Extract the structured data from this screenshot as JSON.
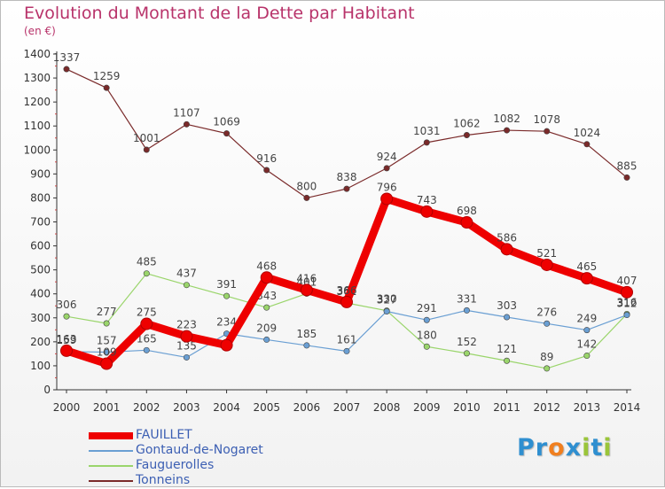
{
  "header": {
    "title": "Evolution du Montant de la Dette par Habitant",
    "unit": "(en €)"
  },
  "brand": {
    "letters": [
      {
        "char": "P",
        "color": "#2f8fd0"
      },
      {
        "char": "r",
        "color": "#2f8fd0"
      },
      {
        "char": "o",
        "color": "#f07f1f"
      },
      {
        "char": "x",
        "color": "#2f8fd0"
      },
      {
        "char": "i",
        "color": "#9ac53a"
      },
      {
        "char": "t",
        "color": "#2f8fd0"
      },
      {
        "char": "i",
        "color": "#9ac53a"
      }
    ]
  },
  "chart_data": {
    "type": "line",
    "title": "Evolution du Montant de la Dette par Habitant",
    "subtitle": "(en €)",
    "x": [
      "2000",
      "2001",
      "2002",
      "2003",
      "2004",
      "2005",
      "2006",
      "2007",
      "2008",
      "2009",
      "2010",
      "2011",
      "2012",
      "2013",
      "2014"
    ],
    "ylim": [
      0,
      1400
    ],
    "yticks": [
      0,
      100,
      200,
      300,
      400,
      500,
      600,
      700,
      800,
      900,
      1000,
      1100,
      1200,
      1300,
      1400
    ],
    "grid": false,
    "legend_position": "bottom-left",
    "series": [
      {
        "name": "Tonneins",
        "color": "#7a2a2a",
        "values": [
          1337,
          1259,
          1001,
          1107,
          1069,
          916,
          800,
          838,
          924,
          1031,
          1062,
          1082,
          1078,
          1024,
          885
        ],
        "labels": [
          "1337",
          "1259",
          "1001",
          "1107",
          "1069",
          "916",
          "800",
          "838",
          "924",
          "1031",
          "1062",
          "1082",
          "1078",
          "1024",
          "885"
        ]
      },
      {
        "name": "Fauguerolles",
        "color": "#9ad56b",
        "values": [
          306,
          277,
          485,
          437,
          391,
          343,
          401,
          362,
          330,
          180,
          152,
          121,
          89,
          142,
          316
        ],
        "labels": [
          "306",
          "277",
          "485",
          "437",
          "391",
          "343",
          "401",
          "362",
          "330",
          "180",
          "152",
          "121",
          "89",
          "142",
          "316"
        ]
      },
      {
        "name": "Gontaud-de-Nogaret",
        "color": "#6a9fd3",
        "values": [
          159,
          157,
          165,
          135,
          234,
          209,
          185,
          161,
          327,
          291,
          331,
          303,
          276,
          249,
          312
        ],
        "labels": [
          "159",
          "157",
          "165",
          "135",
          "234",
          "209",
          "185",
          "161",
          "327",
          "291",
          "331",
          "303",
          "276",
          "249",
          "312"
        ]
      },
      {
        "name": "FAUILLET",
        "color": "#ee0000",
        "values": [
          163,
          109,
          275,
          223,
          186,
          468,
          416,
          366,
          796,
          743,
          698,
          586,
          521,
          465,
          407
        ],
        "labels": [
          "163",
          "109",
          "275",
          "223",
          "",
          "468",
          "416",
          "366",
          "796",
          "743",
          "698",
          "586",
          "521",
          "465",
          "407"
        ]
      }
    ]
  }
}
